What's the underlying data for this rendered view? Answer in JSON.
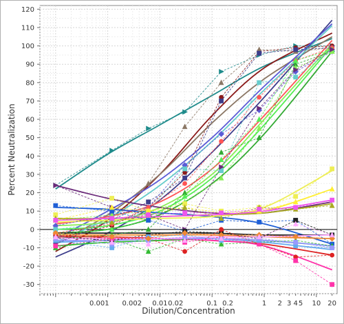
{
  "chart_data": {
    "type": "scatter",
    "xlabel": "Dilution/Concentration",
    "ylabel": "Percent Neutralization",
    "x_scale": "log",
    "xlim": [
      5e-05,
      25
    ],
    "ylim": [
      -35,
      122
    ],
    "grid": true,
    "legend": "none",
    "x_ticks": [
      {
        "value": 0.001,
        "label": "0.001"
      },
      {
        "value": 0.002,
        "label": "0.002"
      },
      {
        "value": 0.01,
        "label": "0.01"
      },
      {
        "value": 0.02,
        "label": "0.02"
      },
      {
        "value": 0.1,
        "label": "0.1"
      },
      {
        "value": 0.2,
        "label": "0.2"
      },
      {
        "value": 1,
        "label": "1"
      },
      {
        "value": 2,
        "label": "2"
      },
      {
        "value": 3,
        "label": "3"
      },
      {
        "value": 4,
        "label": "4"
      },
      {
        "value": 5,
        "label": "5"
      },
      {
        "value": 10,
        "label": "10"
      },
      {
        "value": 20,
        "label": "20"
      }
    ],
    "y_ticks": [
      -30,
      -20,
      -10,
      0,
      10,
      20,
      30,
      40,
      50,
      60,
      70,
      80,
      90,
      100,
      110,
      120
    ],
    "x": [
      0.0001,
      0.0012,
      0.006,
      0.03,
      0.15,
      0.8,
      4,
      20
    ],
    "series": [
      {
        "color": "#1f8b8b",
        "marker": "triangle-right",
        "values": [
          24,
          43,
          55,
          64,
          86,
          95,
          100,
          100
        ],
        "fit": [
          [
            0.0001,
            22
          ],
          [
            0.001,
            41
          ],
          [
            0.01,
            57
          ],
          [
            0.1,
            73
          ],
          [
            1,
            89
          ],
          [
            20,
            104
          ]
        ]
      },
      {
        "color": "#8b1a1a",
        "marker": "circle",
        "values": [
          -5,
          2,
          12,
          31,
          72,
          97,
          99,
          100
        ],
        "fit": [
          [
            0.0001,
            -12
          ],
          [
            0.001,
            5
          ],
          [
            0.01,
            30
          ],
          [
            0.1,
            62
          ],
          [
            1,
            88
          ],
          [
            20,
            107
          ]
        ]
      },
      {
        "color": "#8b7765",
        "marker": "triangle",
        "values": [
          -3,
          4,
          25,
          56,
          80,
          98,
          97,
          99
        ],
        "fit": [
          [
            0.0001,
            -8
          ],
          [
            0.001,
            8
          ],
          [
            0.01,
            30
          ],
          [
            0.1,
            58
          ],
          [
            1,
            82
          ],
          [
            20,
            105
          ]
        ]
      },
      {
        "color": "#3d3d8b",
        "marker": "square",
        "values": [
          -8,
          5,
          15,
          28,
          70,
          96,
          98,
          99
        ],
        "fit": [
          [
            0.0001,
            -15
          ],
          [
            0.001,
            -2
          ],
          [
            0.01,
            16
          ],
          [
            0.1,
            42
          ],
          [
            1,
            72
          ],
          [
            20,
            114
          ]
        ]
      },
      {
        "color": "#5b5bd6",
        "marker": "diamond",
        "values": [
          2,
          8,
          12,
          35,
          52,
          65,
          86,
          97
        ],
        "fit": [
          [
            0.0001,
            -5
          ],
          [
            0.001,
            10
          ],
          [
            0.01,
            27
          ],
          [
            0.1,
            50
          ],
          [
            1,
            78
          ],
          [
            20,
            112
          ]
        ]
      },
      {
        "color": "#66cccc",
        "marker": "square",
        "values": [
          0,
          4,
          10,
          33,
          32,
          80,
          83,
          98
        ],
        "fit": [
          [
            0.0001,
            -7
          ],
          [
            0.001,
            6
          ],
          [
            0.01,
            24
          ],
          [
            0.1,
            48
          ],
          [
            1,
            76
          ],
          [
            20,
            111
          ]
        ]
      },
      {
        "color": "#ff5555",
        "marker": "circle",
        "values": [
          -2,
          3,
          12,
          25,
          48,
          72,
          92,
          99
        ],
        "fit": [
          [
            0.0001,
            3
          ],
          [
            0.001,
            7
          ],
          [
            0.01,
            15
          ],
          [
            0.1,
            33
          ],
          [
            1,
            62
          ],
          [
            20,
            103
          ]
        ]
      },
      {
        "color": "#33aa33",
        "marker": "triangle",
        "values": [
          -5,
          -3,
          0,
          20,
          42,
          50,
          90,
          97
        ],
        "fit": [
          [
            0.0001,
            -2
          ],
          [
            0.001,
            0
          ],
          [
            0.01,
            8
          ],
          [
            0.1,
            25
          ],
          [
            1,
            52
          ],
          [
            20,
            97
          ]
        ]
      },
      {
        "color": "#55ee55",
        "marker": "triangle",
        "values": [
          -3,
          0,
          5,
          18,
          38,
          60,
          92,
          98
        ],
        "fit": [
          [
            0.0001,
            0
          ],
          [
            0.001,
            2
          ],
          [
            0.01,
            10
          ],
          [
            0.1,
            28
          ],
          [
            1,
            57
          ],
          [
            20,
            100
          ]
        ]
      },
      {
        "color": "#88ee55",
        "marker": "triangle",
        "values": [
          5,
          8,
          10,
          15,
          28,
          55,
          88,
          97
        ],
        "fit": [
          [
            0.0001,
            2
          ],
          [
            0.001,
            4
          ],
          [
            0.01,
            12
          ],
          [
            0.1,
            30
          ],
          [
            1,
            60
          ],
          [
            20,
            101
          ]
        ]
      },
      {
        "color": "#6b2a7a",
        "marker": "triangle-right",
        "values": [
          24,
          12,
          8,
          0,
          34,
          66,
          87,
          98
        ],
        "fit": [
          [
            0.0001,
            24
          ],
          [
            0.001,
            17
          ],
          [
            0.01,
            12
          ],
          [
            0.1,
            9
          ],
          [
            1,
            9
          ],
          [
            20,
            15
          ]
        ]
      },
      {
        "color": "#1f5fd6",
        "marker": "square",
        "values": [
          13,
          10,
          5,
          -1,
          5,
          4,
          5,
          -8
        ],
        "fit": [
          [
            0.0001,
            12
          ],
          [
            0.001,
            11
          ],
          [
            0.01,
            9
          ],
          [
            0.1,
            7
          ],
          [
            1,
            3
          ],
          [
            20,
            -8
          ]
        ]
      },
      {
        "color": "#eeee55",
        "marker": "square",
        "values": [
          8,
          17,
          10,
          14,
          10,
          12,
          18,
          33
        ],
        "fit": [
          [
            0.0001,
            4
          ],
          [
            0.001,
            5
          ],
          [
            0.01,
            6
          ],
          [
            0.1,
            7
          ],
          [
            1,
            12
          ],
          [
            20,
            32
          ]
        ]
      },
      {
        "color": "#ffee33",
        "marker": "triangle",
        "values": [
          5,
          12,
          10,
          12,
          9,
          10,
          15,
          22
        ],
        "fit": [
          [
            0.0001,
            5
          ],
          [
            0.001,
            6
          ],
          [
            0.01,
            7
          ],
          [
            0.1,
            8
          ],
          [
            1,
            10
          ],
          [
            20,
            22
          ]
        ]
      },
      {
        "color": "#aaaa22",
        "marker": "triangle",
        "values": [
          6,
          4,
          8,
          12,
          6,
          12,
          11,
          13
        ],
        "fit": [
          [
            0.0001,
            6
          ],
          [
            0.001,
            6
          ],
          [
            0.01,
            7
          ],
          [
            0.1,
            8
          ],
          [
            1,
            9
          ],
          [
            20,
            14
          ]
        ]
      },
      {
        "color": "#ee55ee",
        "marker": "square",
        "values": [
          5,
          6,
          8,
          9,
          9,
          11,
          12,
          16
        ],
        "fit": [
          [
            0.0001,
            5
          ],
          [
            0.001,
            6
          ],
          [
            0.01,
            7
          ],
          [
            0.1,
            8
          ],
          [
            1,
            10
          ],
          [
            20,
            16
          ]
        ]
      },
      {
        "color": "#222222",
        "marker": "square",
        "values": [
          -4,
          -6,
          -3,
          -1,
          -2,
          -5,
          5,
          -3
        ],
        "fit": [
          [
            0.0001,
            -2
          ],
          [
            0.001,
            -2
          ],
          [
            0.01,
            -2
          ],
          [
            0.1,
            -2
          ],
          [
            1,
            -3
          ],
          [
            20,
            -3
          ]
        ]
      },
      {
        "color": "#dd2222",
        "marker": "circle",
        "values": [
          -3,
          -5,
          -5,
          -12,
          0,
          -8,
          -15,
          -14
        ],
        "fit": [
          [
            0.0001,
            -4
          ],
          [
            0.001,
            -4
          ],
          [
            0.01,
            -5
          ],
          [
            0.1,
            -6
          ],
          [
            1,
            -8
          ],
          [
            20,
            -14
          ]
        ]
      },
      {
        "color": "#33bb33",
        "marker": "triangle",
        "values": [
          -10,
          -5,
          -12,
          -5,
          -8,
          -7,
          -6,
          -9
        ],
        "fit": [
          [
            0.0001,
            -9
          ],
          [
            0.001,
            -7
          ],
          [
            0.01,
            -6
          ],
          [
            0.1,
            -5
          ],
          [
            1,
            -6
          ],
          [
            20,
            -9
          ]
        ]
      },
      {
        "color": "#ff33aa",
        "marker": "square",
        "values": [
          -9,
          -5,
          -4,
          -7,
          -4,
          -8,
          -17,
          -30
        ],
        "fit": [
          [
            0.0001,
            -5
          ],
          [
            0.001,
            -5
          ],
          [
            0.01,
            -5
          ],
          [
            0.1,
            -6
          ],
          [
            1,
            -9
          ],
          [
            20,
            -22
          ]
        ]
      },
      {
        "color": "#66aaee",
        "marker": "square",
        "values": [
          -6,
          -10,
          -4,
          -3,
          -6,
          -6,
          -9,
          -10
        ],
        "fit": [
          [
            0.0001,
            -7
          ],
          [
            0.001,
            -6
          ],
          [
            0.01,
            -5
          ],
          [
            0.1,
            -5
          ],
          [
            1,
            -7
          ],
          [
            20,
            -11
          ]
        ]
      },
      {
        "color": "#9999ff",
        "marker": "square",
        "values": [
          -5,
          -8,
          -6,
          -4,
          -5,
          -5,
          -7,
          -10
        ],
        "fit": [
          [
            0.0001,
            -6
          ],
          [
            0.001,
            -6
          ],
          [
            0.01,
            -5
          ],
          [
            0.1,
            -5
          ],
          [
            1,
            -6
          ],
          [
            20,
            -9
          ]
        ]
      },
      {
        "color": "#ee8833",
        "marker": "diamond",
        "values": [
          -2,
          -4,
          -5,
          -2,
          -3,
          -3,
          -4,
          -5
        ],
        "fit": [
          [
            0.0001,
            -3
          ],
          [
            0.001,
            -3
          ],
          [
            0.01,
            -3
          ],
          [
            0.1,
            -3
          ],
          [
            1,
            -4
          ],
          [
            20,
            -5
          ]
        ]
      },
      {
        "color": "#ffaaff",
        "marker": "triangle",
        "values": [
          -4,
          -7,
          -8,
          -6,
          -5,
          -4,
          3,
          -3
        ],
        "fit": [
          [
            0.0001,
            -5
          ],
          [
            0.001,
            -5
          ],
          [
            0.01,
            -5
          ],
          [
            0.1,
            -4
          ],
          [
            1,
            -4
          ],
          [
            20,
            -3
          ]
        ]
      }
    ]
  }
}
